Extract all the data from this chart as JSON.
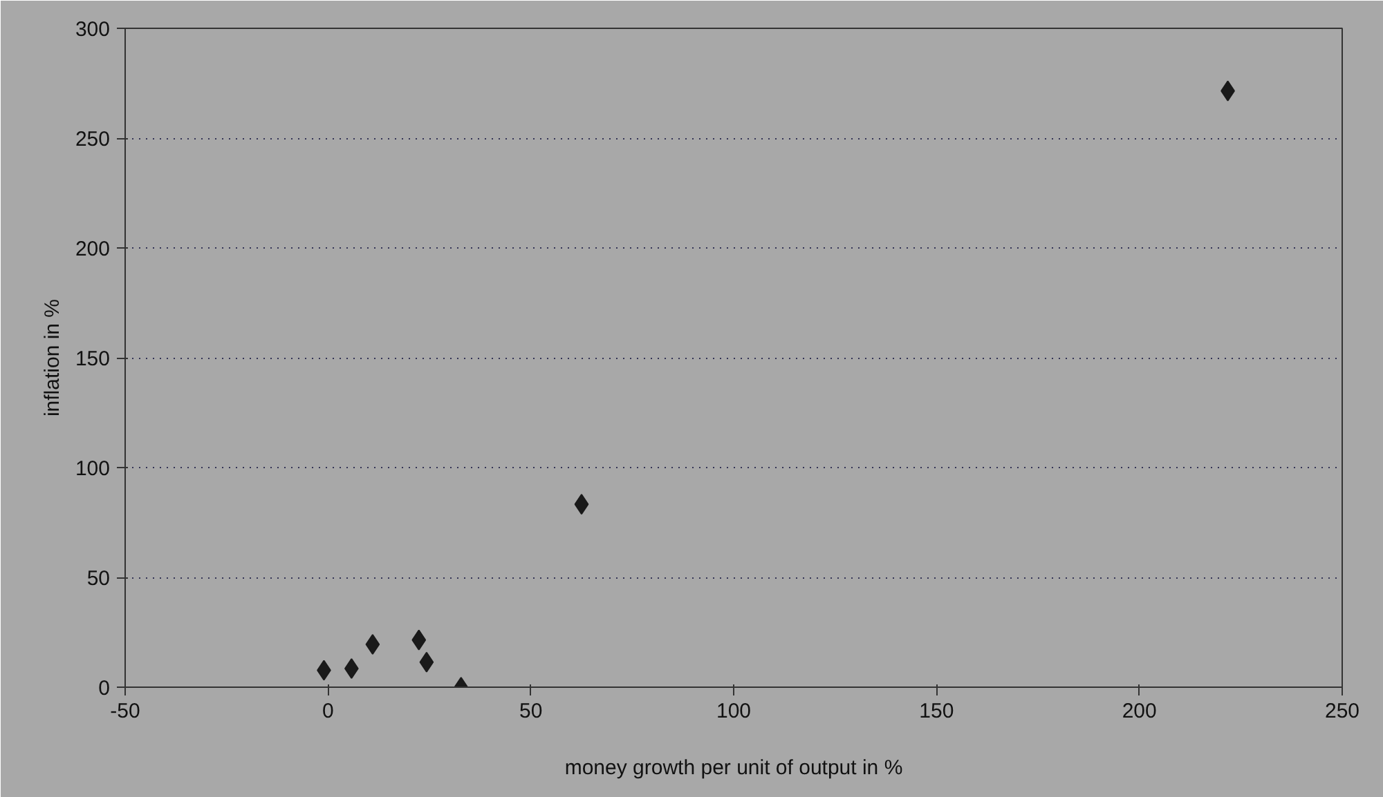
{
  "chart_data": {
    "type": "scatter",
    "xlabel": "money growth per unit of output in %",
    "ylabel": "inflation in %",
    "x": [
      -1,
      5.8,
      11,
      22.4,
      24.3,
      32.8,
      62.5,
      221.8
    ],
    "series": [
      {
        "color": "#1a1a1a",
        "values": [
          7.7,
          8.5,
          19.5,
          21.5,
          11.4,
          0,
          83.3,
          271.5
        ]
      }
    ],
    "xlim": [
      -50,
      250
    ],
    "ylim": [
      0,
      300
    ],
    "xticks": [
      -50,
      0,
      50,
      100,
      150,
      200,
      250
    ],
    "yticks": [
      0,
      50,
      100,
      150,
      200,
      250,
      300
    ],
    "grid": "y",
    "marker": "diamond"
  }
}
